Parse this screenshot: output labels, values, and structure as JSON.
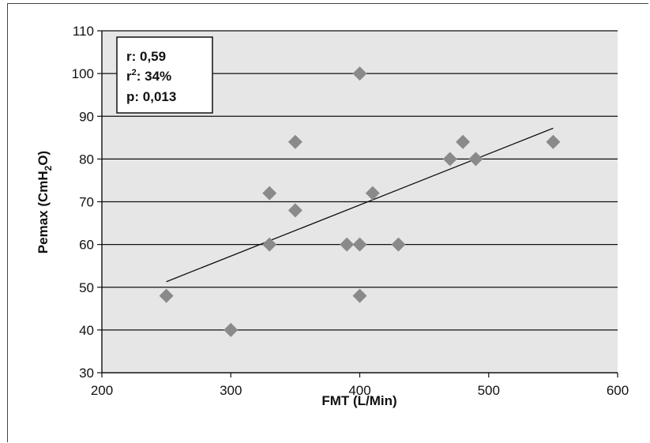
{
  "chart_data": {
    "type": "scatter",
    "xlabel": "FMT (L/Min)",
    "ylabel": {
      "main": "Pemax (CmH",
      "sub": "2",
      "end": "O)"
    },
    "xlim": [
      200,
      600
    ],
    "ylim": [
      30,
      110
    ],
    "xticks": [
      200,
      300,
      400,
      500,
      600
    ],
    "yticks": [
      30,
      40,
      50,
      60,
      70,
      80,
      90,
      100,
      110
    ],
    "grid": "horizontal",
    "plot_background": "#e6e6e6",
    "marker_color": "#8a8a8a",
    "points": [
      {
        "x": 250,
        "y": 48
      },
      {
        "x": 300,
        "y": 40
      },
      {
        "x": 330,
        "y": 72
      },
      {
        "x": 330,
        "y": 60
      },
      {
        "x": 350,
        "y": 84
      },
      {
        "x": 350,
        "y": 68
      },
      {
        "x": 390,
        "y": 60
      },
      {
        "x": 400,
        "y": 100
      },
      {
        "x": 400,
        "y": 60
      },
      {
        "x": 400,
        "y": 48
      },
      {
        "x": 410,
        "y": 72
      },
      {
        "x": 430,
        "y": 60
      },
      {
        "x": 470,
        "y": 80
      },
      {
        "x": 480,
        "y": 84
      },
      {
        "x": 490,
        "y": 80
      },
      {
        "x": 550,
        "y": 84
      }
    ],
    "trendline": {
      "x": [
        250,
        550
      ],
      "y": [
        51.3,
        87.2
      ]
    },
    "stats": {
      "r_label": "r: 0,59",
      "r2_prefix": "r",
      "r2_sup": "2",
      "r2_value": ": 34%",
      "p_label": "p: 0,013"
    }
  }
}
